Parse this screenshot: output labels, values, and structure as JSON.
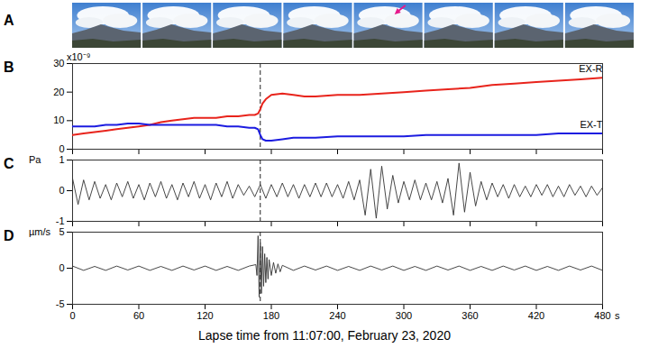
{
  "photos": {
    "panel": "A",
    "frames": 8,
    "arrow_frame": 5
  },
  "chart_data": [
    {
      "panel": "B",
      "type": "line",
      "ylabel": "x10⁻⁹",
      "x": [
        0,
        10,
        20,
        30,
        40,
        50,
        60,
        70,
        80,
        90,
        100,
        110,
        120,
        130,
        140,
        150,
        160,
        165,
        168,
        170,
        172,
        175,
        180,
        190,
        200,
        210,
        220,
        240,
        260,
        280,
        300,
        320,
        340,
        360,
        380,
        400,
        420,
        440,
        460,
        480
      ],
      "series": [
        {
          "name": "EX-R",
          "color": "#e8241c",
          "values": [
            5,
            5.5,
            6,
            6.5,
            7,
            7.5,
            8,
            8.5,
            9.5,
            10,
            10.5,
            11,
            11,
            11,
            11.5,
            11.5,
            12,
            12,
            12.5,
            14,
            16,
            17.5,
            19,
            19.5,
            19,
            18.5,
            18.5,
            19,
            19,
            19.5,
            20,
            20.5,
            21,
            21.5,
            22.5,
            23,
            23.5,
            24,
            24.5,
            25
          ]
        },
        {
          "name": "EX-T",
          "color": "#1c1ce0",
          "values": [
            8,
            8,
            8,
            8.5,
            8.5,
            9,
            9,
            8.5,
            8.5,
            8.5,
            8.5,
            8.5,
            8.5,
            8.5,
            8,
            8,
            7.5,
            7.5,
            7,
            5,
            3.5,
            3,
            3,
            3.5,
            4,
            4,
            4,
            4.5,
            4.5,
            4.5,
            4.5,
            5,
            5,
            5,
            5,
            5,
            5,
            5.5,
            5.5,
            5.5
          ]
        }
      ],
      "xlim": [
        0,
        480
      ],
      "xticks": [
        0,
        60,
        120,
        180,
        240,
        300,
        360,
        420,
        480
      ],
      "ylim": [
        0,
        30
      ],
      "yticks": [
        0,
        10,
        20,
        30
      ],
      "vline": {
        "x": 170,
        "line_style": "dashed"
      },
      "tick_labels": "y"
    },
    {
      "panel": "C",
      "type": "line",
      "ylabel": "Pa",
      "color": "#333333",
      "x": [
        0,
        5,
        10,
        15,
        20,
        25,
        30,
        35,
        40,
        45,
        50,
        55,
        60,
        65,
        70,
        75,
        80,
        85,
        90,
        95,
        100,
        105,
        110,
        115,
        120,
        125,
        130,
        135,
        140,
        145,
        150,
        155,
        160,
        165,
        170,
        175,
        180,
        185,
        190,
        195,
        200,
        205,
        210,
        215,
        220,
        225,
        230,
        235,
        240,
        245,
        250,
        255,
        260,
        265,
        270,
        275,
        280,
        285,
        290,
        295,
        300,
        305,
        310,
        315,
        320,
        325,
        330,
        335,
        340,
        345,
        350,
        355,
        360,
        365,
        370,
        375,
        380,
        385,
        390,
        395,
        400,
        405,
        410,
        415,
        420,
        425,
        430,
        435,
        440,
        445,
        450,
        455,
        460,
        465,
        470,
        475,
        480
      ],
      "values": [
        0.4,
        -0.45,
        0.35,
        -0.3,
        0.3,
        -0.25,
        0.2,
        -0.3,
        0.25,
        -0.2,
        0.3,
        -0.25,
        0.2,
        -0.3,
        0.25,
        -0.2,
        0.3,
        -0.25,
        0.2,
        -0.3,
        0.25,
        -0.2,
        0.3,
        -0.25,
        0.2,
        -0.3,
        0.25,
        -0.2,
        0.3,
        -0.25,
        0.2,
        -0.15,
        0.15,
        -0.2,
        0.2,
        -0.25,
        0.2,
        -0.2,
        0.25,
        -0.2,
        0.2,
        -0.25,
        0.2,
        -0.2,
        0.25,
        -0.2,
        0.25,
        -0.2,
        0.2,
        -0.25,
        0.3,
        -0.3,
        0.35,
        -0.8,
        0.7,
        -0.9,
        0.8,
        -0.6,
        0.5,
        -0.4,
        0.3,
        -0.3,
        0.35,
        -0.3,
        0.25,
        -0.3,
        0.3,
        -0.4,
        0.4,
        -0.8,
        0.9,
        -0.7,
        0.6,
        -0.5,
        0.3,
        -0.3,
        0.25,
        -0.2,
        0.2,
        -0.25,
        0.2,
        -0.2,
        0.15,
        -0.2,
        0.2,
        -0.15,
        0.2,
        -0.2,
        0.15,
        -0.2,
        0.2,
        -0.15,
        0.15,
        -0.2,
        0.15,
        -0.15,
        0.1
      ],
      "xlim": [
        0,
        480
      ],
      "xticks": [
        0,
        60,
        120,
        180,
        240,
        300,
        360,
        420,
        480
      ],
      "ylim": [
        -1,
        1
      ],
      "yticks": [
        -1,
        0,
        1
      ],
      "vline": {
        "x": 170,
        "line_style": "dashed"
      },
      "tick_labels": "y"
    },
    {
      "panel": "D",
      "type": "line",
      "ylabel": "µm/s",
      "color": "#333333",
      "xlabel": "Lapse time from 11:07:00, February 23, 2020",
      "x_unit": "s",
      "x": [
        0,
        10,
        20,
        30,
        40,
        50,
        60,
        70,
        80,
        90,
        100,
        110,
        120,
        130,
        140,
        150,
        160,
        166,
        167,
        168,
        169,
        170,
        171,
        172,
        173,
        174,
        175,
        176,
        177,
        178,
        180,
        182,
        184,
        186,
        188,
        190,
        200,
        210,
        220,
        230,
        240,
        250,
        260,
        270,
        280,
        290,
        300,
        310,
        320,
        330,
        340,
        350,
        360,
        370,
        380,
        390,
        400,
        410,
        420,
        430,
        440,
        450,
        460,
        470,
        480
      ],
      "values": [
        0.3,
        -0.3,
        0.25,
        -0.3,
        0.3,
        -0.25,
        0.3,
        -0.3,
        0.25,
        -0.3,
        0.3,
        -0.25,
        0.3,
        -0.3,
        0.25,
        -0.3,
        0.3,
        0.5,
        -1,
        4.5,
        -4,
        3.5,
        -3.5,
        3,
        -2.5,
        2,
        -2,
        1.5,
        -1.5,
        1.2,
        -1,
        0.8,
        -0.7,
        0.6,
        -0.5,
        0.4,
        -0.3,
        0.3,
        -0.25,
        0.3,
        -0.3,
        0.25,
        -0.3,
        0.3,
        -0.25,
        0.3,
        -0.3,
        0.25,
        -0.3,
        0.3,
        -0.25,
        0.3,
        -0.3,
        0.25,
        -0.3,
        0.3,
        -0.25,
        0.3,
        -0.3,
        0.25,
        -0.3,
        0.3,
        -0.25,
        0.3,
        -0.3
      ],
      "xlim": [
        0,
        480
      ],
      "xticks": [
        0,
        60,
        120,
        180,
        240,
        300,
        360,
        420,
        480
      ],
      "ylim": [
        -5,
        5
      ],
      "yticks": [
        -5,
        0,
        5
      ],
      "vline": {
        "x": 170,
        "line_style": "dashed"
      },
      "tick_labels": true
    }
  ]
}
